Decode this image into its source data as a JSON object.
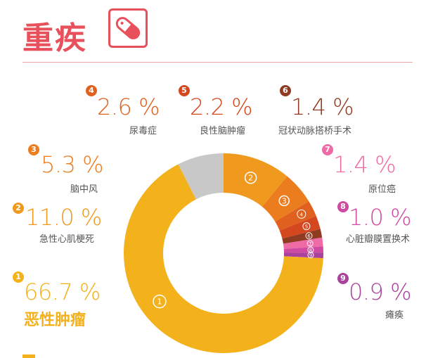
{
  "header": {
    "title": "重疾",
    "icon": "pill-capsule-icon",
    "accent_color": "#e8505b"
  },
  "chart_data": {
    "type": "pie",
    "style": "donut",
    "categories": [
      "恶性肿瘤",
      "急性心肌梗死",
      "脑中风",
      "尿毒症",
      "良性脑肿瘤",
      "冠状动脉搭桥手术",
      "原位癌",
      "心脏瓣膜置换术",
      "瘫痪"
    ],
    "values": [
      66.7,
      11.0,
      5.3,
      2.6,
      2.2,
      1.4,
      1.4,
      1.0,
      0.9
    ],
    "value_labels": [
      "66.7 %",
      "11.0 %",
      "5.3 %",
      "2.6 %",
      "2.2 %",
      "1.4 %",
      "1.4 %",
      "1.0 %",
      "0.9 %"
    ],
    "slice_numbers": [
      "1",
      "2",
      "3",
      "4",
      "5",
      "6",
      "7",
      "8",
      "9"
    ],
    "colors": [
      "#f3b21b",
      "#f0991f",
      "#ec7d1e",
      "#e0611f",
      "#d4471f",
      "#8f3b22",
      "#ee6ba6",
      "#cf4aa1",
      "#a8429c"
    ],
    "others_color": "#c8c8c8",
    "start_angle_deg": 0,
    "direction": "clockwise"
  }
}
